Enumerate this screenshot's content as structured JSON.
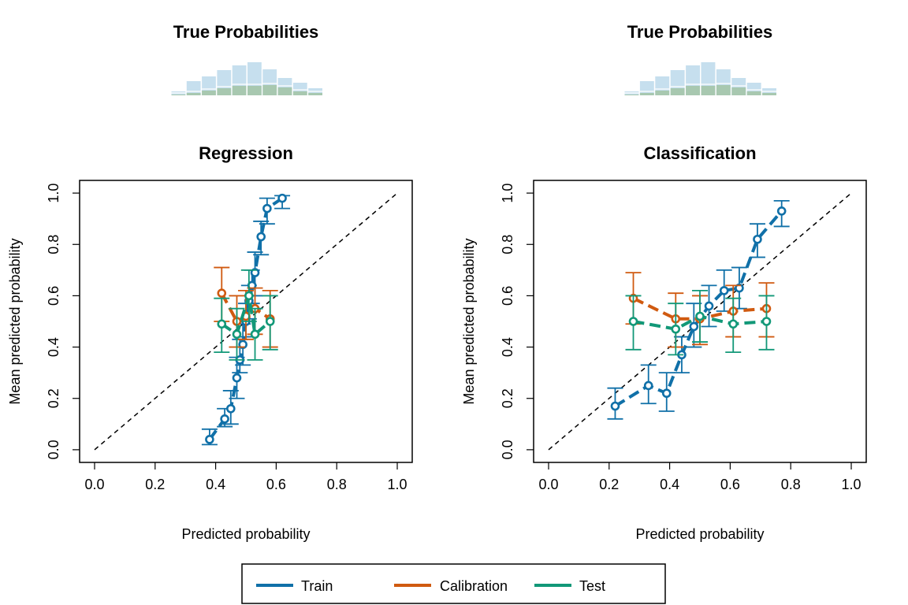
{
  "colors": {
    "train": "#1070a8",
    "calibration": "#d05a10",
    "test": "#129878",
    "hist_light": "#c6dfee",
    "hist_dark": "#a8c8b0"
  },
  "legend": {
    "items": [
      {
        "key": "train",
        "label": "Train"
      },
      {
        "key": "calibration",
        "label": "Calibration"
      },
      {
        "key": "test",
        "label": "Test"
      }
    ]
  },
  "chart_data": [
    {
      "type": "line",
      "title": "Regression",
      "hist_title": "True Probabilities",
      "xlabel": "Predicted probability",
      "ylabel": "Mean predicted probability",
      "xlim": [
        0,
        1
      ],
      "ylim": [
        0,
        1
      ],
      "xticks": [
        "0.0",
        "0.2",
        "0.4",
        "0.6",
        "0.8",
        "1.0"
      ],
      "yticks": [
        "0.0",
        "0.2",
        "0.4",
        "0.6",
        "0.8",
        "1.0"
      ],
      "reference_line": "y = x",
      "hist": {
        "bins": [
          [
            0.25,
            0.3
          ],
          [
            0.3,
            0.35
          ],
          [
            0.35,
            0.4
          ],
          [
            0.4,
            0.45
          ],
          [
            0.45,
            0.5
          ],
          [
            0.5,
            0.55
          ],
          [
            0.55,
            0.6
          ],
          [
            0.6,
            0.65
          ],
          [
            0.65,
            0.7
          ],
          [
            0.7,
            0.75
          ]
        ],
        "counts_all": [
          5,
          18,
          24,
          32,
          38,
          42,
          33,
          22,
          16,
          9
        ],
        "counts_positive": [
          1,
          3,
          6,
          9,
          12,
          12,
          13,
          10,
          5,
          3
        ]
      },
      "series": [
        {
          "key": "train",
          "name": "Train",
          "x": [
            0.38,
            0.43,
            0.45,
            0.47,
            0.48,
            0.49,
            0.5,
            0.51,
            0.52,
            0.53,
            0.55,
            0.57,
            0.62
          ],
          "y": [
            0.04,
            0.12,
            0.16,
            0.28,
            0.35,
            0.41,
            0.5,
            0.58,
            0.64,
            0.69,
            0.83,
            0.94,
            0.98
          ],
          "lo": [
            0.02,
            0.09,
            0.1,
            0.2,
            0.3,
            0.33,
            0.44,
            0.51,
            0.57,
            0.6,
            0.76,
            0.88,
            0.94
          ],
          "hi": [
            0.08,
            0.16,
            0.23,
            0.36,
            0.43,
            0.49,
            0.57,
            0.64,
            0.7,
            0.77,
            0.89,
            0.98,
            0.99
          ]
        },
        {
          "key": "calibration",
          "name": "Calibration",
          "x": [
            0.42,
            0.47,
            0.5,
            0.53,
            0.58
          ],
          "y": [
            0.61,
            0.5,
            0.52,
            0.55,
            0.51
          ],
          "lo": [
            0.5,
            0.4,
            0.43,
            0.45,
            0.4
          ],
          "hi": [
            0.71,
            0.6,
            0.62,
            0.63,
            0.62
          ]
        },
        {
          "key": "test",
          "name": "Test",
          "x": [
            0.42,
            0.47,
            0.51,
            0.53,
            0.58
          ],
          "y": [
            0.49,
            0.45,
            0.6,
            0.45,
            0.5
          ],
          "lo": [
            0.38,
            0.35,
            0.5,
            0.35,
            0.39
          ],
          "hi": [
            0.59,
            0.55,
            0.7,
            0.55,
            0.6
          ]
        }
      ]
    },
    {
      "type": "line",
      "title": "Classification",
      "hist_title": "True Probabilities",
      "xlabel": "Predicted probability",
      "ylabel": "Mean predicted probability",
      "xlim": [
        0,
        1
      ],
      "ylim": [
        0,
        1
      ],
      "xticks": [
        "0.0",
        "0.2",
        "0.4",
        "0.6",
        "0.8",
        "1.0"
      ],
      "yticks": [
        "0.0",
        "0.2",
        "0.4",
        "0.6",
        "0.8",
        "1.0"
      ],
      "reference_line": "y = x",
      "hist": {
        "bins": [
          [
            0.25,
            0.3
          ],
          [
            0.3,
            0.35
          ],
          [
            0.35,
            0.4
          ],
          [
            0.4,
            0.45
          ],
          [
            0.45,
            0.5
          ],
          [
            0.5,
            0.55
          ],
          [
            0.55,
            0.6
          ],
          [
            0.6,
            0.65
          ],
          [
            0.65,
            0.7
          ],
          [
            0.7,
            0.75
          ]
        ],
        "counts_all": [
          5,
          18,
          24,
          32,
          38,
          42,
          33,
          22,
          16,
          9
        ],
        "counts_positive": [
          1,
          3,
          6,
          9,
          12,
          12,
          13,
          10,
          5,
          3
        ]
      },
      "series": [
        {
          "key": "train",
          "name": "Train",
          "x": [
            0.22,
            0.33,
            0.39,
            0.44,
            0.48,
            0.53,
            0.58,
            0.63,
            0.69,
            0.77
          ],
          "y": [
            0.17,
            0.25,
            0.22,
            0.37,
            0.48,
            0.56,
            0.62,
            0.63,
            0.82,
            0.93
          ],
          "lo": [
            0.12,
            0.18,
            0.15,
            0.3,
            0.4,
            0.48,
            0.54,
            0.55,
            0.75,
            0.87
          ],
          "hi": [
            0.24,
            0.33,
            0.3,
            0.44,
            0.57,
            0.64,
            0.7,
            0.71,
            0.88,
            0.97
          ]
        },
        {
          "key": "calibration",
          "name": "Calibration",
          "x": [
            0.28,
            0.42,
            0.5,
            0.61,
            0.72
          ],
          "y": [
            0.59,
            0.51,
            0.51,
            0.54,
            0.55
          ],
          "lo": [
            0.49,
            0.4,
            0.41,
            0.44,
            0.44
          ],
          "hi": [
            0.69,
            0.61,
            0.6,
            0.64,
            0.65
          ]
        },
        {
          "key": "test",
          "name": "Test",
          "x": [
            0.28,
            0.42,
            0.5,
            0.61,
            0.72
          ],
          "y": [
            0.5,
            0.47,
            0.52,
            0.49,
            0.5
          ],
          "lo": [
            0.39,
            0.37,
            0.42,
            0.38,
            0.39
          ],
          "hi": [
            0.6,
            0.57,
            0.62,
            0.59,
            0.6
          ]
        }
      ]
    }
  ]
}
